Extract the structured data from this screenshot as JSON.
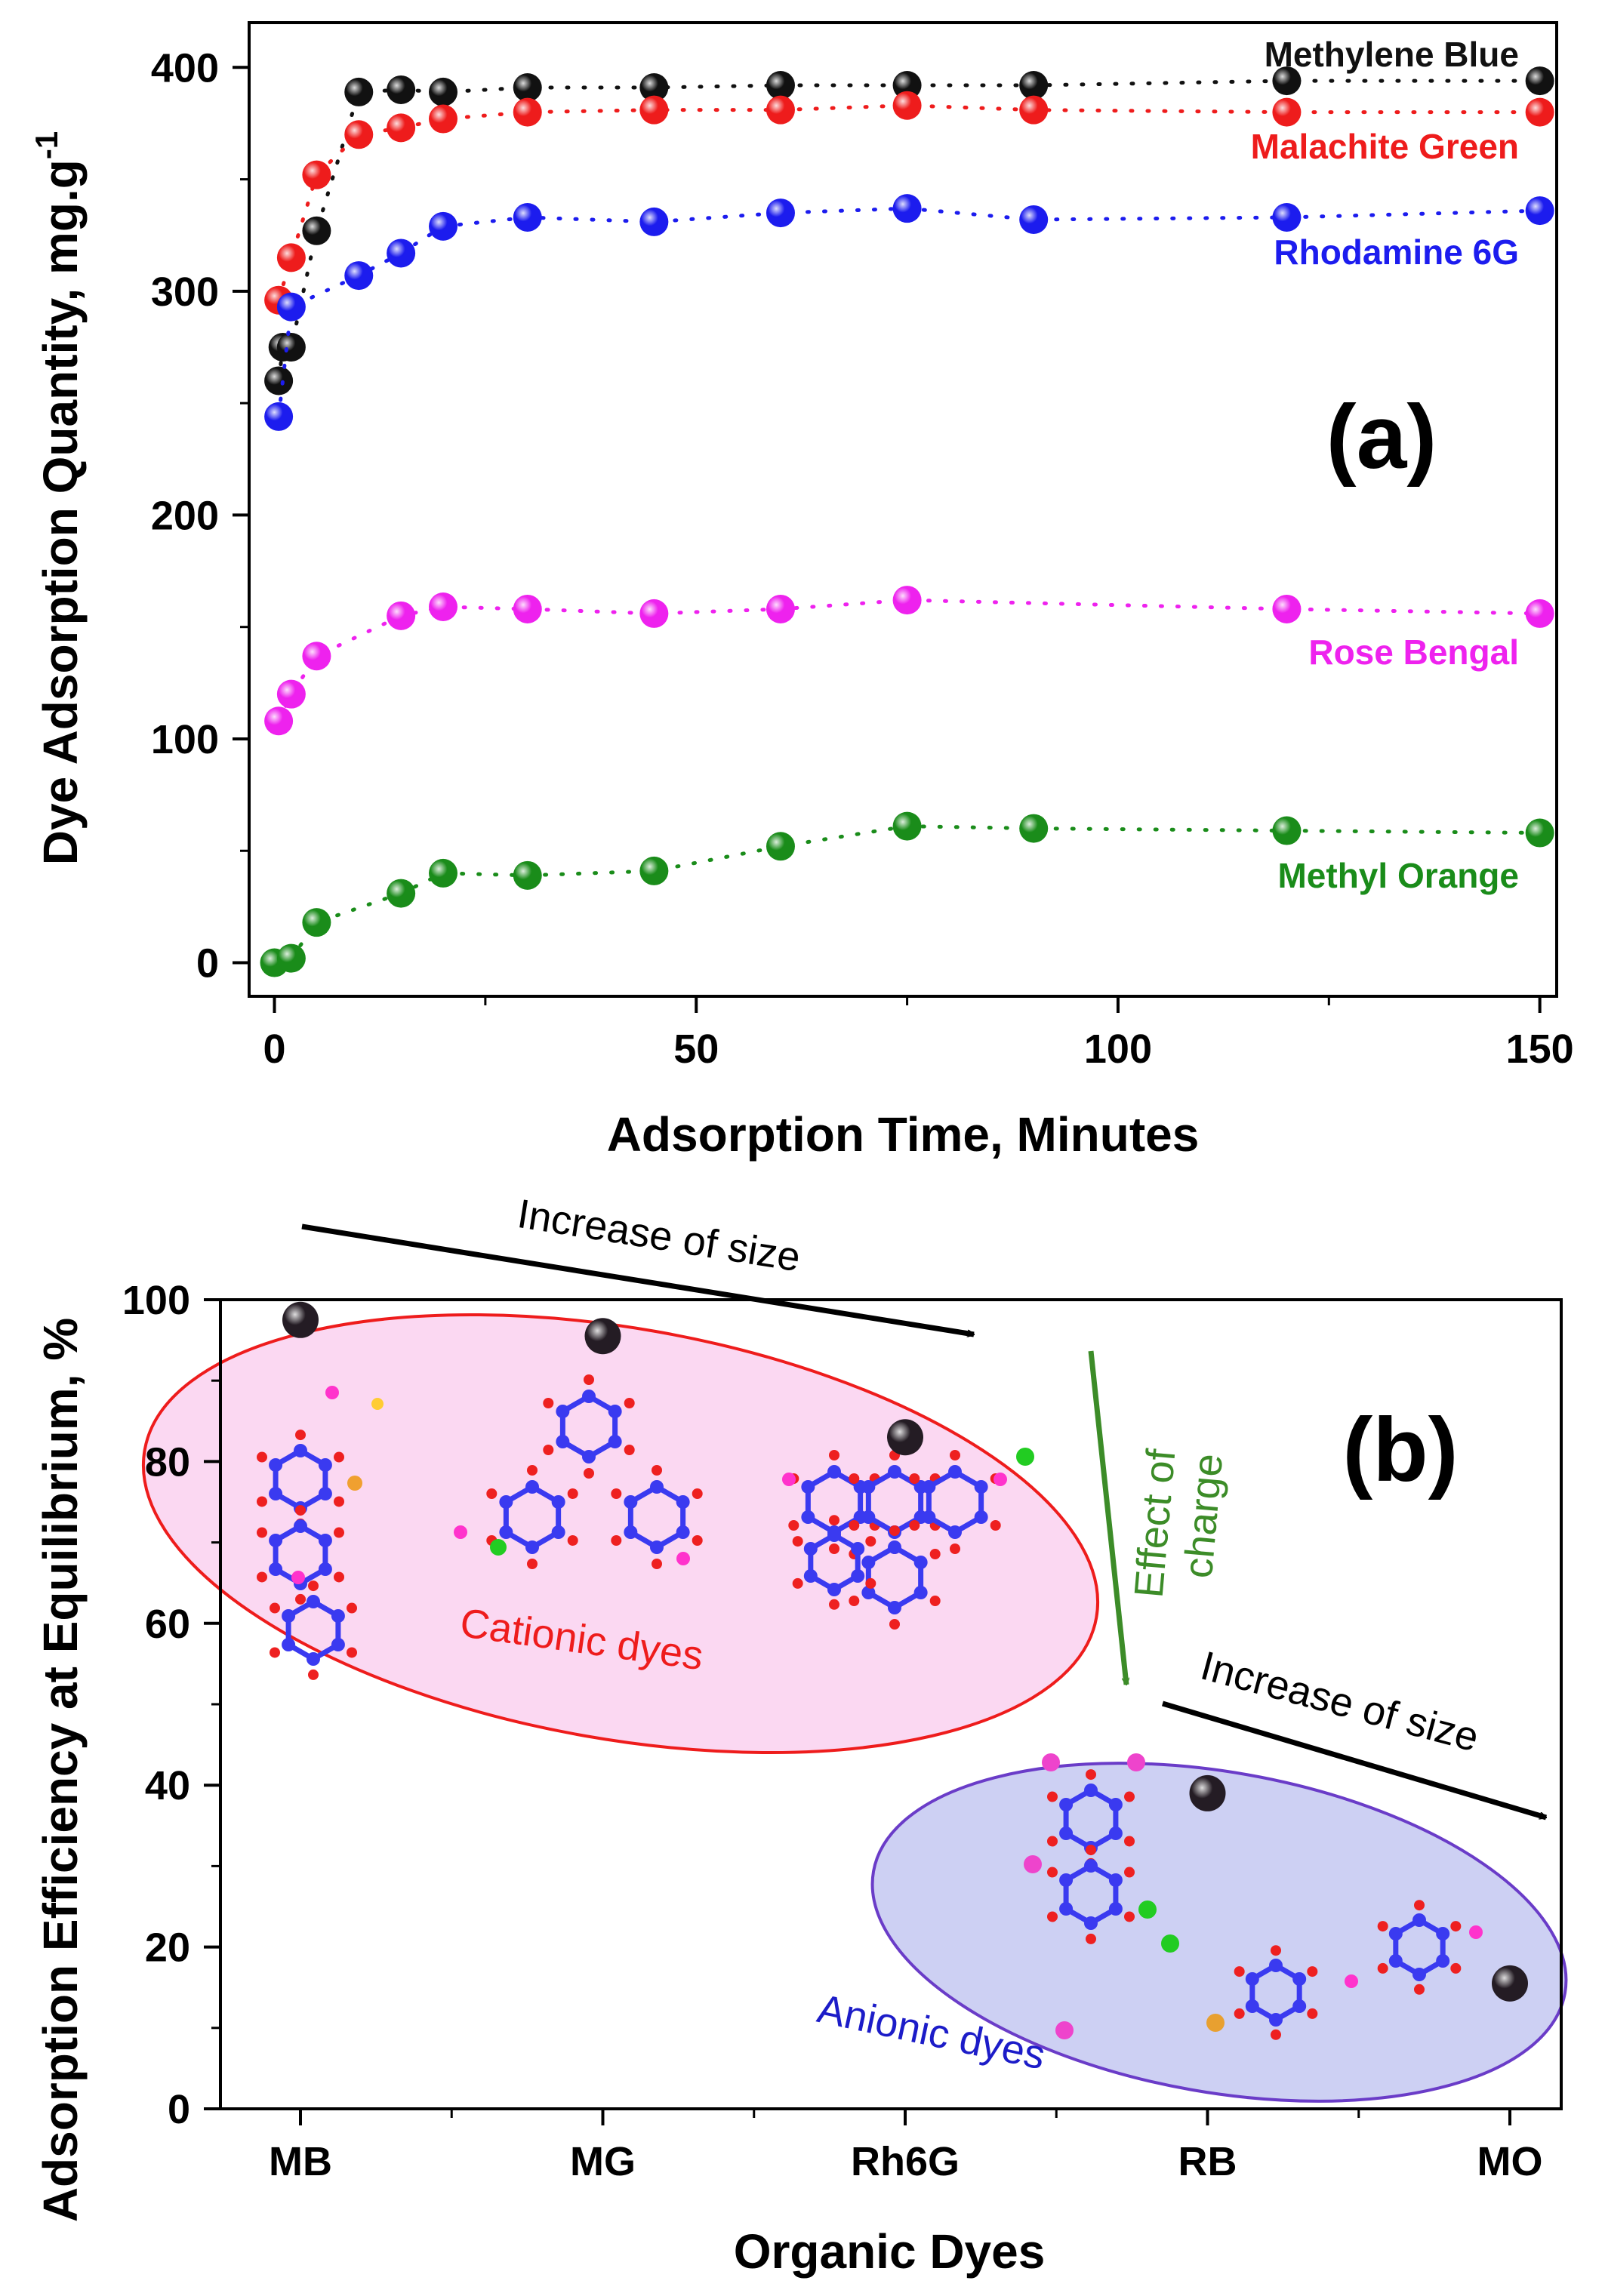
{
  "chart_data": [
    {
      "panel": "(a)",
      "type": "scatter",
      "xlabel": "Adsorption Time, Minutes",
      "ylabel": "Dye Adsorption Quantity, mg.g",
      "ylabel_sup": "-1",
      "xlim": [
        -3,
        152
      ],
      "ylim": [
        -15,
        420
      ],
      "xticks": [
        "0",
        "50",
        "100",
        "150"
      ],
      "yticks": [
        "0",
        "100",
        "200",
        "300",
        "400"
      ],
      "connector": "dotted",
      "series": [
        {
          "name": "Methylene Blue",
          "color": "#111111",
          "x": [
            0.5,
            1,
            2,
            5,
            10,
            15,
            20,
            30,
            45,
            60,
            75,
            90,
            120,
            150
          ],
          "y": [
            260,
            275,
            275,
            327,
            389,
            390,
            389,
            391,
            391,
            392,
            392,
            392,
            394,
            394
          ]
        },
        {
          "name": "Malachite Green",
          "color": "#ee1c1c",
          "x": [
            0.5,
            2,
            5,
            10,
            15,
            20,
            30,
            45,
            60,
            75,
            90,
            120,
            150
          ],
          "y": [
            296,
            315,
            352,
            370,
            373,
            377,
            380,
            381,
            381,
            383,
            381,
            380,
            380
          ]
        },
        {
          "name": "Rhodamine 6G",
          "color": "#1c1cee",
          "x": [
            0.5,
            2,
            10,
            15,
            20,
            30,
            45,
            60,
            75,
            90,
            120,
            150
          ],
          "y": [
            244,
            293,
            307,
            317,
            329,
            333,
            331,
            335,
            337,
            332,
            333,
            336
          ]
        },
        {
          "name": "Rose Bengal",
          "color": "#ee22ee",
          "x": [
            0.5,
            2,
            5,
            15,
            20,
            30,
            45,
            60,
            75,
            120,
            150
          ],
          "y": [
            108,
            120,
            137,
            155,
            159,
            158,
            156,
            158,
            162,
            158,
            156
          ]
        },
        {
          "name": "Methyl Orange",
          "color": "#1a8c1a",
          "x": [
            0,
            2,
            5,
            15,
            20,
            30,
            45,
            60,
            75,
            90,
            120,
            150
          ],
          "y": [
            0,
            2,
            18,
            31,
            40,
            39,
            41,
            52,
            61,
            60,
            59,
            58
          ]
        }
      ]
    },
    {
      "panel": "(b)",
      "type": "scatter",
      "xlabel": "Organic Dyes",
      "ylabel": "Adsorption Efficiency at Equilibrium, %",
      "categories": [
        "MB",
        "MG",
        "Rh6G",
        "RB",
        "MO"
      ],
      "ylim": [
        0,
        100
      ],
      "yticks": [
        "0",
        "20",
        "40",
        "60",
        "80",
        "100"
      ],
      "values": [
        97.5,
        95.5,
        83,
        39,
        15.5
      ],
      "groups": [
        {
          "label": "Cationic dyes",
          "color": "#ee1c1c",
          "fill": "#fbd8f2"
        },
        {
          "label": "Anionic  dyes",
          "color": "#1c1cc8",
          "fill": "#cdd0f3"
        }
      ],
      "annotations": [
        "Increase of size",
        "Effect of",
        "charge",
        "Increase of size"
      ]
    }
  ]
}
